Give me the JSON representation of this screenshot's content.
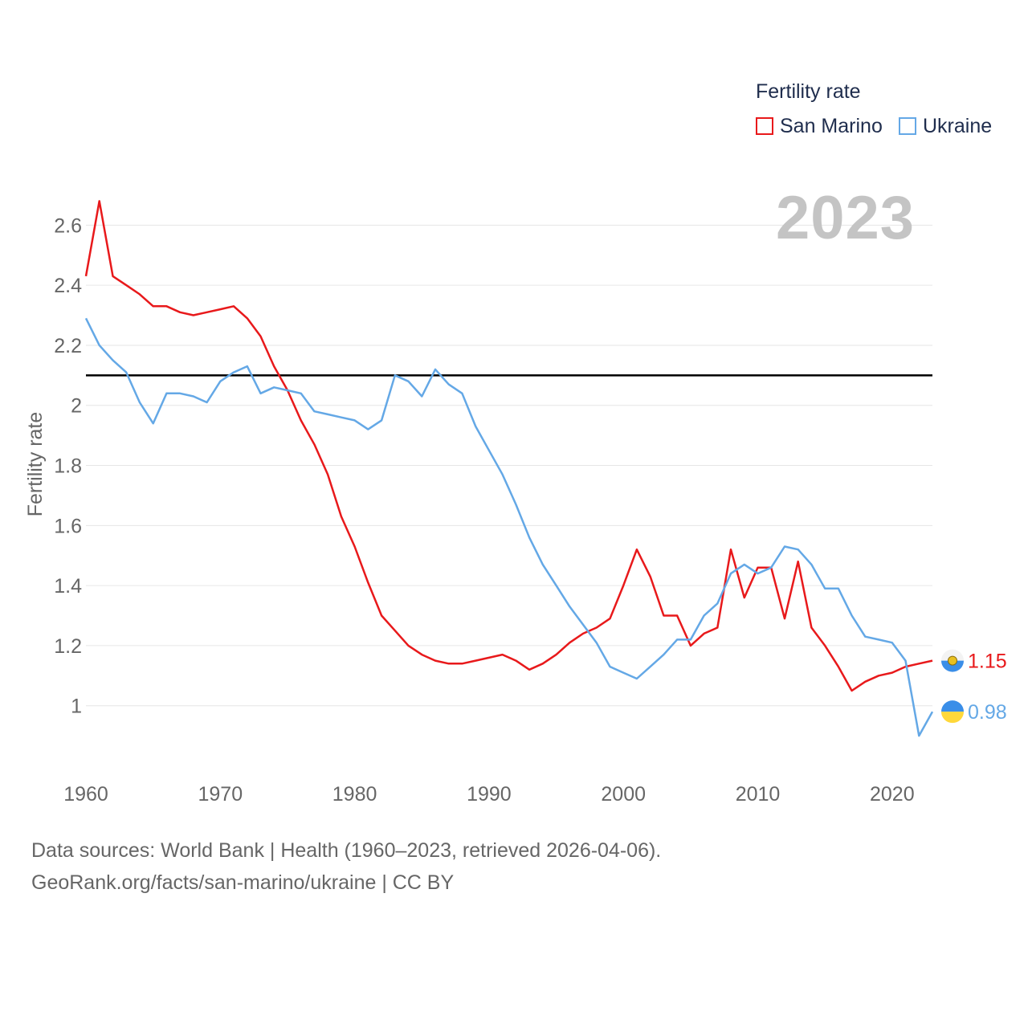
{
  "legend": {
    "title": "Fertility rate",
    "items": [
      {
        "label": "San Marino",
        "color": "#e8191b"
      },
      {
        "label": "Ukraine",
        "color": "#64a8e6"
      }
    ]
  },
  "year_label": "2023",
  "footer": {
    "line1": "Data sources: World Bank | Health (1960–2023, retrieved 2026-04-06).",
    "line2": "GeoRank.org/facts/san-marino/ukraine | CC BY"
  },
  "chart_data": {
    "type": "line",
    "title": "Fertility rate",
    "xlabel": "",
    "ylabel": "Fertility rate",
    "xlim": [
      1960,
      2023
    ],
    "ylim": [
      0.82,
      2.74
    ],
    "grid": true,
    "x_ticks": [
      1960,
      1970,
      1980,
      1990,
      2000,
      2010,
      2020
    ],
    "y_ticks": [
      1,
      1.2,
      1.4,
      1.6,
      1.8,
      2,
      2.2,
      2.4,
      2.6
    ],
    "reference_line": {
      "y": 2.1,
      "color": "#000000"
    },
    "x": [
      1960,
      1961,
      1962,
      1963,
      1964,
      1965,
      1966,
      1967,
      1968,
      1969,
      1970,
      1971,
      1972,
      1973,
      1974,
      1975,
      1976,
      1977,
      1978,
      1979,
      1980,
      1981,
      1982,
      1983,
      1984,
      1985,
      1986,
      1987,
      1988,
      1989,
      1990,
      1991,
      1992,
      1993,
      1994,
      1995,
      1996,
      1997,
      1998,
      1999,
      2000,
      2001,
      2002,
      2003,
      2004,
      2005,
      2006,
      2007,
      2008,
      2009,
      2010,
      2011,
      2012,
      2013,
      2014,
      2015,
      2016,
      2017,
      2018,
      2019,
      2020,
      2021,
      2022,
      2023
    ],
    "series": [
      {
        "name": "San Marino",
        "color": "#e8191b",
        "end_label": "1.15",
        "values": [
          2.43,
          2.68,
          2.43,
          2.4,
          2.37,
          2.33,
          2.33,
          2.31,
          2.3,
          2.31,
          2.32,
          2.33,
          2.29,
          2.23,
          2.13,
          2.05,
          1.95,
          1.87,
          1.77,
          1.63,
          1.53,
          1.41,
          1.3,
          1.25,
          1.2,
          1.17,
          1.15,
          1.14,
          1.14,
          1.15,
          1.16,
          1.17,
          1.15,
          1.12,
          1.14,
          1.17,
          1.21,
          1.24,
          1.26,
          1.29,
          1.4,
          1.52,
          1.43,
          1.3,
          1.3,
          1.2,
          1.24,
          1.26,
          1.52,
          1.36,
          1.46,
          1.46,
          1.29,
          1.48,
          1.26,
          1.2,
          1.13,
          1.05,
          1.08,
          1.1,
          1.11,
          1.13,
          1.14,
          1.15
        ]
      },
      {
        "name": "Ukraine",
        "color": "#64a8e6",
        "end_label": "0.98",
        "values": [
          2.29,
          2.2,
          2.15,
          2.11,
          2.01,
          1.94,
          2.04,
          2.04,
          2.03,
          2.01,
          2.08,
          2.11,
          2.13,
          2.04,
          2.06,
          2.05,
          2.04,
          1.98,
          1.97,
          1.96,
          1.95,
          1.92,
          1.95,
          2.1,
          2.08,
          2.03,
          2.12,
          2.07,
          2.04,
          1.93,
          1.85,
          1.77,
          1.67,
          1.56,
          1.47,
          1.4,
          1.33,
          1.27,
          1.21,
          1.13,
          1.11,
          1.09,
          1.13,
          1.17,
          1.22,
          1.22,
          1.3,
          1.34,
          1.44,
          1.47,
          1.44,
          1.46,
          1.53,
          1.52,
          1.47,
          1.39,
          1.39,
          1.3,
          1.23,
          1.22,
          1.21,
          1.15,
          0.9,
          0.98
        ]
      }
    ]
  }
}
